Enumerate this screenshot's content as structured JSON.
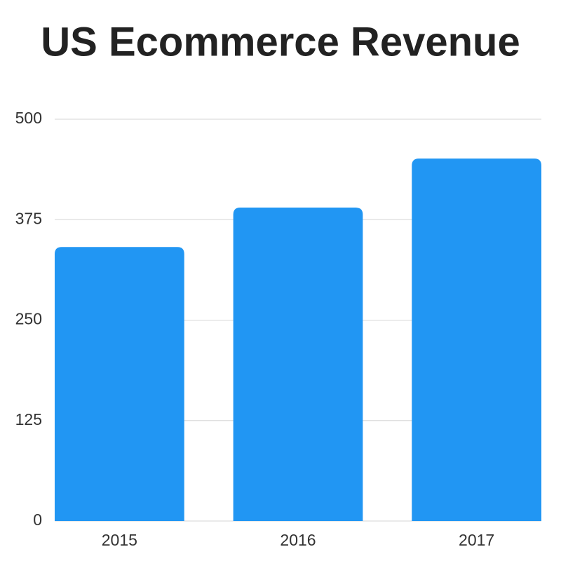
{
  "chart_data": {
    "type": "bar",
    "title": "US Ecommerce Revenue",
    "categories": [
      "2015",
      "2016",
      "2017"
    ],
    "values": [
      341,
      390,
      451
    ],
    "color": "#2196f3",
    "ylim": [
      0,
      500
    ],
    "yticks": [
      0,
      125,
      250,
      375,
      500
    ],
    "grid": true
  }
}
